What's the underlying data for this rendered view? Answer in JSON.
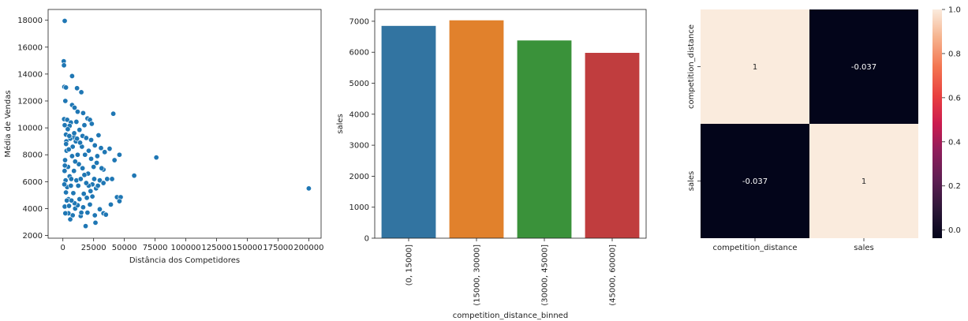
{
  "chart_data": [
    {
      "type": "scatter",
      "xlabel": "Distância dos Competidores",
      "ylabel": "Média de Vendas",
      "xlim": [
        -12000,
        210000
      ],
      "ylim": [
        1800,
        18800
      ],
      "xticks": [
        0,
        25000,
        50000,
        75000,
        100000,
        125000,
        150000,
        175000,
        200000
      ],
      "xtick_labels": [
        "0",
        "25000",
        "50000",
        "75000",
        "100000",
        "125000",
        "150000",
        "175000",
        "200000"
      ],
      "yticks": [
        2000,
        4000,
        6000,
        8000,
        10000,
        12000,
        14000,
        16000,
        18000
      ],
      "ytick_labels": [
        "2000",
        "4000",
        "6000",
        "8000",
        "10000",
        "12000",
        "14000",
        "16000",
        "18000"
      ],
      "color": "#1f77b4",
      "points": [
        [
          1500,
          17950
        ],
        [
          700,
          14950
        ],
        [
          900,
          14650
        ],
        [
          7500,
          13850
        ],
        [
          1200,
          13050
        ],
        [
          2500,
          13000
        ],
        [
          11500,
          12950
        ],
        [
          15000,
          12650
        ],
        [
          2000,
          12000
        ],
        [
          7500,
          11700
        ],
        [
          9500,
          11500
        ],
        [
          12000,
          11200
        ],
        [
          16500,
          11100
        ],
        [
          41000,
          11050
        ],
        [
          1000,
          10650
        ],
        [
          3500,
          10600
        ],
        [
          6500,
          10400
        ],
        [
          11000,
          10450
        ],
        [
          20000,
          10700
        ],
        [
          22000,
          10600
        ],
        [
          1500,
          10200
        ],
        [
          5500,
          10150
        ],
        [
          17500,
          10200
        ],
        [
          23500,
          10300
        ],
        [
          4000,
          9900
        ],
        [
          13500,
          9850
        ],
        [
          2500,
          9500
        ],
        [
          9000,
          9300
        ],
        [
          16000,
          9400
        ],
        [
          19000,
          9250
        ],
        [
          23000,
          9100
        ],
        [
          26000,
          8700
        ],
        [
          29000,
          9450
        ],
        [
          31000,
          8500
        ],
        [
          34000,
          8200
        ],
        [
          38000,
          8450
        ],
        [
          46000,
          8000
        ],
        [
          58000,
          6450
        ],
        [
          76000,
          7800
        ],
        [
          200000,
          5500
        ],
        [
          42000,
          7600
        ],
        [
          28000,
          7900
        ],
        [
          25000,
          7100
        ],
        [
          33000,
          6900
        ],
        [
          36000,
          6200
        ],
        [
          30000,
          6100
        ],
        [
          27000,
          5500
        ],
        [
          24000,
          5800
        ],
        [
          33000,
          5900
        ],
        [
          40000,
          6200
        ],
        [
          44000,
          4850
        ],
        [
          47000,
          4850
        ],
        [
          46000,
          4550
        ],
        [
          39000,
          4300
        ],
        [
          33000,
          3650
        ],
        [
          35000,
          3550
        ],
        [
          30000,
          3950
        ],
        [
          26000,
          3500
        ],
        [
          26500,
          2950
        ],
        [
          20000,
          3700
        ],
        [
          18500,
          2700
        ],
        [
          14500,
          3450
        ],
        [
          15000,
          3700
        ],
        [
          8000,
          3500
        ],
        [
          6000,
          3200
        ],
        [
          4500,
          3650
        ],
        [
          2000,
          3650
        ],
        [
          1500,
          4150
        ],
        [
          10000,
          4000
        ],
        [
          12000,
          4250
        ],
        [
          22000,
          4300
        ],
        [
          19500,
          4800
        ],
        [
          17000,
          5100
        ],
        [
          21000,
          5700
        ],
        [
          12500,
          5700
        ],
        [
          8500,
          5150
        ],
        [
          4500,
          4700
        ],
        [
          2500,
          5200
        ],
        [
          2200,
          6100
        ],
        [
          5500,
          6400
        ],
        [
          9000,
          6800
        ],
        [
          13000,
          7300
        ],
        [
          18000,
          8000
        ],
        [
          21000,
          8300
        ],
        [
          15500,
          8600
        ],
        [
          10500,
          9000
        ],
        [
          6000,
          9200
        ],
        [
          3000,
          8300
        ],
        [
          1800,
          7600
        ],
        [
          7500,
          7900
        ],
        [
          12000,
          8000
        ],
        [
          16000,
          7000
        ],
        [
          20500,
          6600
        ],
        [
          23000,
          7700
        ],
        [
          27500,
          7400
        ],
        [
          31500,
          7000
        ],
        [
          3500,
          5600
        ],
        [
          6500,
          5700
        ],
        [
          11000,
          6100
        ],
        [
          14500,
          6200
        ],
        [
          17500,
          6500
        ],
        [
          9500,
          4400
        ],
        [
          5000,
          4200
        ],
        [
          13500,
          4700
        ],
        [
          16500,
          4100
        ],
        [
          7000,
          4600
        ],
        [
          2800,
          9000
        ],
        [
          8000,
          8600
        ],
        [
          11500,
          9200
        ],
        [
          14000,
          8900
        ],
        [
          4200,
          7100
        ],
        [
          10000,
          7500
        ],
        [
          6800,
          6200
        ],
        [
          19000,
          5900
        ],
        [
          22500,
          5300
        ],
        [
          25500,
          6200
        ],
        [
          28500,
          5700
        ],
        [
          24000,
          4900
        ],
        [
          3200,
          4600
        ],
        [
          1200,
          5800
        ],
        [
          1400,
          6800
        ],
        [
          1600,
          7200
        ],
        [
          2600,
          8800
        ],
        [
          4800,
          8400
        ],
        [
          9200,
          9600
        ],
        [
          5200,
          9400
        ]
      ]
    },
    {
      "type": "bar",
      "xlabel": "competition_distance_binned",
      "ylabel": "sales",
      "categories": [
        "(0, 15000]",
        "(15000, 30000]",
        "(30000, 45000]",
        "(45000, 60000]"
      ],
      "values": [
        6850,
        7030,
        6380,
        5980
      ],
      "colors": [
        "#3274a1",
        "#e1812c",
        "#3a923a",
        "#c03d3e"
      ],
      "ylim": [
        0,
        7380
      ],
      "yticks": [
        0,
        1000,
        2000,
        3000,
        4000,
        5000,
        6000,
        7000
      ],
      "ytick_labels": [
        "0",
        "1000",
        "2000",
        "3000",
        "4000",
        "5000",
        "6000",
        "7000"
      ]
    },
    {
      "type": "heatmap",
      "rows": [
        "competition_distance",
        "sales"
      ],
      "cols": [
        "competition_distance",
        "sales"
      ],
      "values": [
        [
          1,
          -0.037
        ],
        [
          -0.037,
          1
        ]
      ],
      "annotations": [
        [
          "1",
          "-0.037"
        ],
        [
          "-0.037",
          "1"
        ]
      ],
      "colorbar": {
        "min": -0.037,
        "max": 1.0,
        "ticks": [
          0.0,
          0.2,
          0.4,
          0.6,
          0.8,
          1.0
        ],
        "tick_labels": [
          "0.0",
          "0.2",
          "0.4",
          "0.6",
          "0.8",
          "1.0"
        ],
        "colormap": "rocket"
      }
    }
  ]
}
